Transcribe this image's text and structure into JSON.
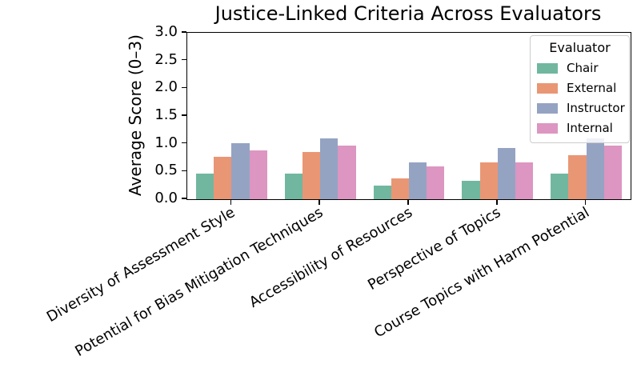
{
  "chart_data": {
    "type": "bar",
    "title": "Justice-Linked Criteria Across Evaluators",
    "xlabel": "",
    "ylabel": "Average Score (0–3)",
    "ylim": [
      0,
      3
    ],
    "yticks": [
      "0.0",
      "0.5",
      "1.0",
      "1.5",
      "2.0",
      "2.5",
      "3.0"
    ],
    "grid": false,
    "legend_title": "Evaluator",
    "legend_position": "upper right",
    "categories": [
      "Diversity of Assessment Style",
      "Potential for Bias Mitigation Techniques",
      "Accessibility of Resources",
      "Perspective of Topics",
      "Course Topics with Harm Potential"
    ],
    "series": [
      {
        "name": "Chair",
        "color": "#71b7a0",
        "values": [
          0.46,
          0.46,
          0.25,
          0.33,
          0.46
        ]
      },
      {
        "name": "External",
        "color": "#e99675",
        "values": [
          0.77,
          0.85,
          0.37,
          0.67,
          0.8
        ]
      },
      {
        "name": "Instructor",
        "color": "#95a3c3",
        "values": [
          1.01,
          1.1,
          0.67,
          0.92,
          1.1
        ]
      },
      {
        "name": "Internal",
        "color": "#dc96c1",
        "values": [
          0.88,
          0.96,
          0.59,
          0.67,
          0.96
        ]
      }
    ]
  }
}
